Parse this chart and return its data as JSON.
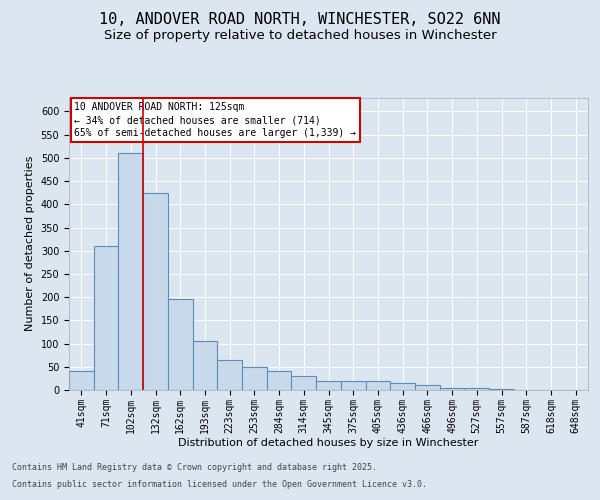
{
  "title_line1": "10, ANDOVER ROAD NORTH, WINCHESTER, SO22 6NN",
  "title_line2": "Size of property relative to detached houses in Winchester",
  "xlabel": "Distribution of detached houses by size in Winchester",
  "ylabel": "Number of detached properties",
  "categories": [
    "41sqm",
    "71sqm",
    "102sqm",
    "132sqm",
    "162sqm",
    "193sqm",
    "223sqm",
    "253sqm",
    "284sqm",
    "314sqm",
    "345sqm",
    "375sqm",
    "405sqm",
    "436sqm",
    "466sqm",
    "496sqm",
    "527sqm",
    "557sqm",
    "587sqm",
    "618sqm",
    "648sqm"
  ],
  "values": [
    40,
    310,
    510,
    425,
    195,
    105,
    65,
    50,
    40,
    30,
    20,
    20,
    20,
    15,
    10,
    5,
    5,
    3,
    1,
    1,
    1
  ],
  "bar_color": "#c9d9ec",
  "bar_edge_color": "#5b8db8",
  "bar_edge_width": 0.8,
  "vline_x": 2.5,
  "vline_color": "#cc0000",
  "annotation_line1": "10 ANDOVER ROAD NORTH: 125sqm",
  "annotation_line2": "← 34% of detached houses are smaller (714)",
  "annotation_line3": "65% of semi-detached houses are larger (1,339) →",
  "annotation_box_color": "#cc0000",
  "ylim": [
    0,
    630
  ],
  "yticks": [
    0,
    50,
    100,
    150,
    200,
    250,
    300,
    350,
    400,
    450,
    500,
    550,
    600
  ],
  "background_color": "#dce6f1",
  "plot_bg_color": "#dce6f1",
  "footer_line1": "Contains HM Land Registry data © Crown copyright and database right 2025.",
  "footer_line2": "Contains public sector information licensed under the Open Government Licence v3.0.",
  "title_fontsize": 11,
  "subtitle_fontsize": 9.5,
  "axis_label_fontsize": 8,
  "tick_fontsize": 7,
  "annotation_fontsize": 7,
  "footer_fontsize": 6
}
